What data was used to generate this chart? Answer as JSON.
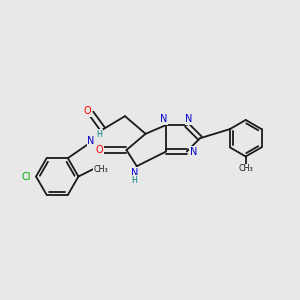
{
  "background_color": "#e8e8e8",
  "bond_color": "#1a1a1a",
  "atom_colors": {
    "N": "#0000cc",
    "O": "#ff0000",
    "Cl": "#00aa00",
    "C": "#1a1a1a",
    "H": "#008080"
  },
  "bond_width": 1.3,
  "font_size_atom": 7.0,
  "font_size_small": 6.0
}
